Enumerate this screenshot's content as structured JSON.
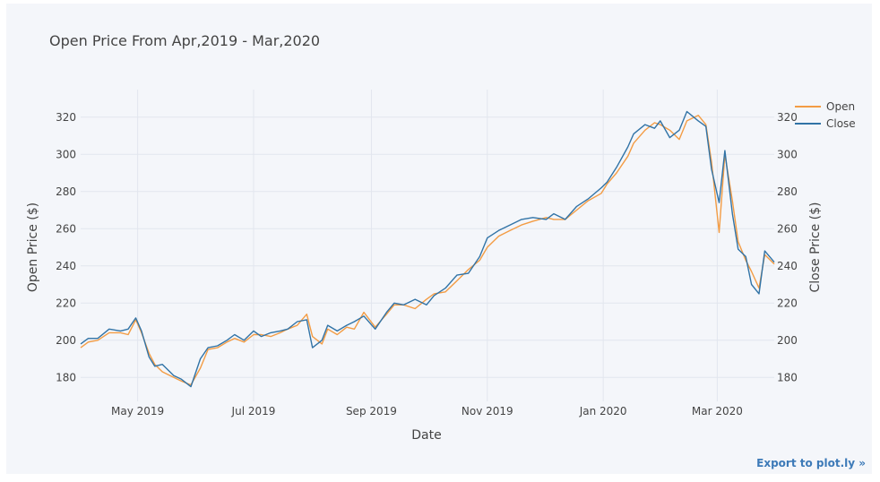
{
  "page": {
    "title": "Open Price From Apr,2019 - Mar,2020",
    "export_label": "Export to plot.ly »"
  },
  "colors": {
    "open": "#f39c44",
    "close": "#3173a6",
    "grid": "#e2e6ee",
    "background": "#f4f6fa"
  },
  "chart_data": {
    "type": "line",
    "title": "Open Price From Apr,2019 - Mar,2020",
    "xlabel": "Date",
    "ylabel_left": "Open Price ($)",
    "ylabel_right": "Close Price ($)",
    "xlim": [
      "2019-04-01",
      "2020-03-31"
    ],
    "ylim": [
      170,
      330
    ],
    "x_ticks": [
      {
        "date": "2019-05-01",
        "label": "May 2019"
      },
      {
        "date": "2019-07-01",
        "label": "Jul 2019"
      },
      {
        "date": "2019-09-01",
        "label": "Sep 2019"
      },
      {
        "date": "2019-11-01",
        "label": "Nov 2019"
      },
      {
        "date": "2020-01-01",
        "label": "Jan 2020"
      },
      {
        "date": "2020-03-01",
        "label": "Mar 2020"
      }
    ],
    "y_ticks_left": [
      180,
      200,
      220,
      240,
      260,
      280,
      300,
      320
    ],
    "y_ticks_right": [
      180,
      200,
      220,
      240,
      260,
      280,
      300,
      320
    ],
    "grid": true,
    "legend_position": "top-right",
    "series": [
      {
        "name": "Open",
        "axis": "left",
        "x": [
          "2019-04-01",
          "2019-04-05",
          "2019-04-10",
          "2019-04-16",
          "2019-04-22",
          "2019-04-26",
          "2019-04-30",
          "2019-05-03",
          "2019-05-07",
          "2019-05-10",
          "2019-05-14",
          "2019-05-20",
          "2019-05-24",
          "2019-05-29",
          "2019-06-03",
          "2019-06-07",
          "2019-06-12",
          "2019-06-17",
          "2019-06-21",
          "2019-06-26",
          "2019-07-01",
          "2019-07-05",
          "2019-07-10",
          "2019-07-15",
          "2019-07-19",
          "2019-07-24",
          "2019-07-29",
          "2019-08-01",
          "2019-08-06",
          "2019-08-09",
          "2019-08-14",
          "2019-08-19",
          "2019-08-23",
          "2019-08-28",
          "2019-09-03",
          "2019-09-09",
          "2019-09-13",
          "2019-09-18",
          "2019-09-24",
          "2019-09-30",
          "2019-10-04",
          "2019-10-10",
          "2019-10-16",
          "2019-10-22",
          "2019-10-28",
          "2019-11-01",
          "2019-11-07",
          "2019-11-13",
          "2019-11-19",
          "2019-11-25",
          "2019-12-02",
          "2019-12-06",
          "2019-12-12",
          "2019-12-18",
          "2019-12-24",
          "2019-12-31",
          "2020-01-03",
          "2020-01-08",
          "2020-01-14",
          "2020-01-17",
          "2020-01-23",
          "2020-01-28",
          "2020-01-31",
          "2020-02-05",
          "2020-02-10",
          "2020-02-14",
          "2020-02-20",
          "2020-02-24",
          "2020-02-27",
          "2020-03-02",
          "2020-03-05",
          "2020-03-09",
          "2020-03-12",
          "2020-03-16",
          "2020-03-19",
          "2020-03-23",
          "2020-03-26",
          "2020-03-31"
        ],
        "values": [
          196,
          199,
          200,
          204,
          204,
          203,
          211,
          204,
          193,
          187,
          183,
          180,
          178,
          176,
          185,
          195,
          196,
          199,
          201,
          199,
          203,
          203,
          202,
          204,
          206,
          208,
          214,
          202,
          198,
          206,
          203,
          207,
          206,
          215,
          207,
          214,
          219,
          219,
          217,
          222,
          225,
          226,
          232,
          238,
          243,
          250,
          256,
          259,
          262,
          264,
          266,
          265,
          265,
          270,
          275,
          279,
          284,
          290,
          299,
          306,
          313,
          317,
          316,
          313,
          308,
          318,
          321,
          316,
          296,
          258,
          300,
          275,
          253,
          243,
          237,
          228,
          246,
          241
        ]
      },
      {
        "name": "Close",
        "axis": "right",
        "x": [
          "2019-04-01",
          "2019-04-05",
          "2019-04-10",
          "2019-04-16",
          "2019-04-22",
          "2019-04-26",
          "2019-04-30",
          "2019-05-03",
          "2019-05-07",
          "2019-05-10",
          "2019-05-14",
          "2019-05-20",
          "2019-05-24",
          "2019-05-29",
          "2019-06-03",
          "2019-06-07",
          "2019-06-12",
          "2019-06-17",
          "2019-06-21",
          "2019-06-26",
          "2019-07-01",
          "2019-07-05",
          "2019-07-10",
          "2019-07-15",
          "2019-07-19",
          "2019-07-24",
          "2019-07-29",
          "2019-08-01",
          "2019-08-06",
          "2019-08-09",
          "2019-08-14",
          "2019-08-19",
          "2019-08-23",
          "2019-08-28",
          "2019-09-03",
          "2019-09-09",
          "2019-09-13",
          "2019-09-18",
          "2019-09-24",
          "2019-09-30",
          "2019-10-04",
          "2019-10-10",
          "2019-10-16",
          "2019-10-22",
          "2019-10-28",
          "2019-11-01",
          "2019-11-07",
          "2019-11-13",
          "2019-11-19",
          "2019-11-25",
          "2019-12-02",
          "2019-12-06",
          "2019-12-12",
          "2019-12-18",
          "2019-12-24",
          "2019-12-31",
          "2020-01-03",
          "2020-01-08",
          "2020-01-14",
          "2020-01-17",
          "2020-01-23",
          "2020-01-28",
          "2020-01-31",
          "2020-02-05",
          "2020-02-10",
          "2020-02-14",
          "2020-02-20",
          "2020-02-24",
          "2020-02-27",
          "2020-03-02",
          "2020-03-05",
          "2020-03-09",
          "2020-03-12",
          "2020-03-16",
          "2020-03-19",
          "2020-03-23",
          "2020-03-26",
          "2020-03-31"
        ],
        "values": [
          198,
          201,
          201,
          206,
          205,
          206,
          212,
          205,
          191,
          186,
          187,
          181,
          179,
          175,
          190,
          196,
          197,
          200,
          203,
          200,
          205,
          202,
          204,
          205,
          206,
          210,
          211,
          196,
          200,
          208,
          205,
          208,
          210,
          213,
          206,
          215,
          220,
          219,
          222,
          219,
          224,
          228,
          235,
          236,
          245,
          255,
          259,
          262,
          265,
          266,
          265,
          268,
          265,
          272,
          276,
          282,
          285,
          293,
          304,
          311,
          316,
          314,
          318,
          309,
          313,
          323,
          318,
          315,
          292,
          274,
          302,
          268,
          249,
          245,
          230,
          225,
          248,
          242
        ]
      }
    ]
  }
}
